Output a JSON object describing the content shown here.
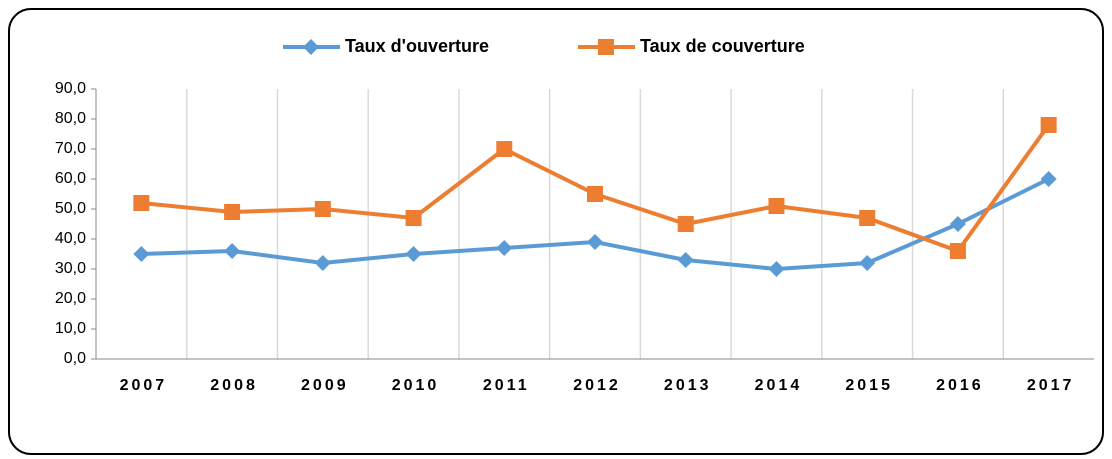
{
  "chart_data": {
    "type": "line",
    "categories": [
      "2007",
      "2008",
      "2009",
      "2010",
      "2011",
      "2012",
      "2013",
      "2014",
      "2015",
      "2016",
      "2017"
    ],
    "series": [
      {
        "name": "Taux d'ouverture",
        "color": "#5b9bd5",
        "marker": "diamond",
        "values": [
          35,
          36,
          32,
          35,
          37,
          39,
          33,
          30,
          32,
          45,
          60
        ]
      },
      {
        "name": "Taux de couverture",
        "color": "#ed7d31",
        "marker": "square",
        "values": [
          52,
          49,
          50,
          47,
          70,
          55,
          45,
          51,
          47,
          36,
          78
        ]
      }
    ],
    "ylim": [
      0,
      90
    ],
    "yticks": [
      {
        "value": 0,
        "label": "0,0"
      },
      {
        "value": 10,
        "label": "10,0"
      },
      {
        "value": 20,
        "label": "20,0"
      },
      {
        "value": 30,
        "label": "30,0"
      },
      {
        "value": 40,
        "label": "40,0"
      },
      {
        "value": 50,
        "label": "50,0"
      },
      {
        "value": 60,
        "label": "60,0"
      },
      {
        "value": 70,
        "label": "70,0"
      },
      {
        "value": 80,
        "label": "80,0"
      },
      {
        "value": 90,
        "label": "90,0"
      }
    ],
    "grid": "x",
    "legend": "top"
  }
}
